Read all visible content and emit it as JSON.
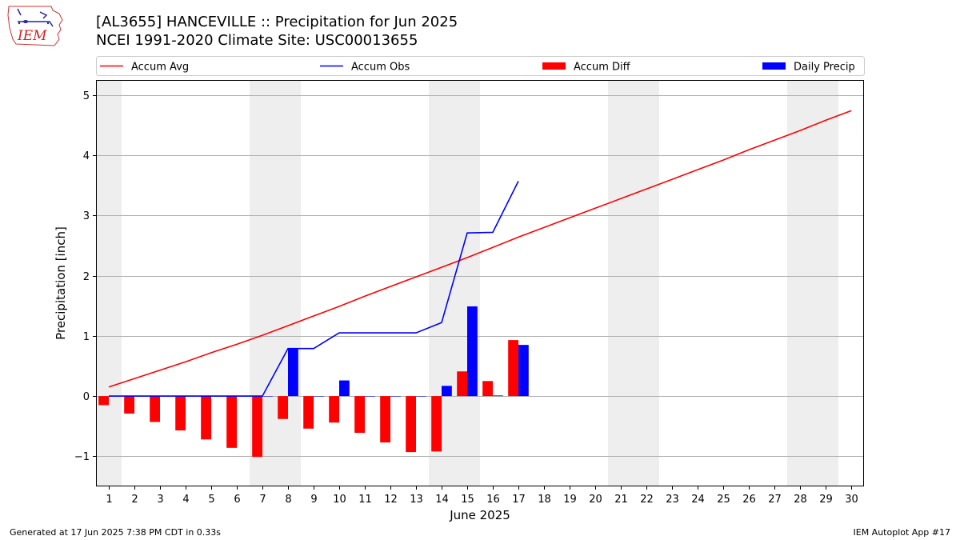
{
  "header": {
    "title_line1": "[AL3655] HANCEVILLE :: Precipitation for Jun 2025",
    "title_line2": "NCEI 1991-2020 Climate Site: USC00013655",
    "logo_text": "IEM"
  },
  "footer": {
    "left": "Generated at 17 Jun 2025 7:38 PM CDT in 0.33s",
    "right": "IEM Autoplot App #17"
  },
  "chart_data": {
    "type": "bar",
    "xlabel": "June 2025",
    "ylabel": "Precipitation [inch]",
    "xlim": [
      0.5,
      30.5
    ],
    "ylim": [
      -1.5,
      5.25
    ],
    "yticks": [
      -1,
      0,
      1,
      2,
      3,
      4,
      5
    ],
    "ytick_labels": [
      "−1",
      "0",
      "1",
      "2",
      "3",
      "4",
      "5"
    ],
    "xticks": [
      1,
      2,
      3,
      4,
      5,
      6,
      7,
      8,
      9,
      10,
      11,
      12,
      13,
      14,
      15,
      16,
      17,
      18,
      19,
      20,
      21,
      22,
      23,
      24,
      25,
      26,
      27,
      28,
      29,
      30
    ],
    "grid": "horizontal",
    "weekend_shading": [
      [
        0.5,
        1.5
      ],
      [
        6.5,
        8.5
      ],
      [
        13.5,
        15.5
      ],
      [
        20.5,
        22.5
      ],
      [
        27.5,
        29.5
      ]
    ],
    "legend_position": "top",
    "colors": {
      "accum_avg": "#ff0000",
      "accum_obs": "#0000ff",
      "accum_diff": "#ff0000",
      "daily_precip": "#0000ff",
      "shading": "#eeeeee",
      "grid": "#b0b0b0"
    },
    "legend": [
      {
        "label": "Accum Avg",
        "kind": "line",
        "color": "#ff0000"
      },
      {
        "label": "Accum Obs",
        "kind": "line",
        "color": "#0000ff"
      },
      {
        "label": "Accum Diff",
        "kind": "bar",
        "color": "#ff0000"
      },
      {
        "label": "Daily Precip",
        "kind": "bar",
        "color": "#0000ff"
      }
    ],
    "series": [
      {
        "name": "Accum Avg",
        "kind": "line",
        "x": [
          1,
          2,
          3,
          4,
          5,
          6,
          7,
          8,
          9,
          10,
          11,
          12,
          13,
          14,
          15,
          16,
          17,
          18,
          19,
          20,
          21,
          22,
          23,
          24,
          25,
          26,
          27,
          28,
          29,
          30
        ],
        "values": [
          0.15,
          0.29,
          0.43,
          0.57,
          0.72,
          0.86,
          1.01,
          1.17,
          1.33,
          1.49,
          1.66,
          1.82,
          1.98,
          2.14,
          2.3,
          2.47,
          2.64,
          2.8,
          2.96,
          3.12,
          3.28,
          3.44,
          3.6,
          3.76,
          3.92,
          4.09,
          4.25,
          4.41,
          4.58,
          4.74
        ]
      },
      {
        "name": "Accum Obs",
        "kind": "line",
        "x": [
          1,
          2,
          3,
          4,
          5,
          6,
          7,
          8,
          9,
          10,
          11,
          12,
          13,
          14,
          15,
          16,
          17
        ],
        "values": [
          0.0,
          0.0,
          0.0,
          0.0,
          0.0,
          0.0,
          0.0,
          0.79,
          0.79,
          1.05,
          1.05,
          1.05,
          1.05,
          1.22,
          2.71,
          2.72,
          3.57
        ]
      },
      {
        "name": "Accum Diff",
        "kind": "bar",
        "x": [
          1,
          2,
          3,
          4,
          5,
          6,
          7,
          8,
          9,
          10,
          11,
          12,
          13,
          14,
          15,
          16,
          17
        ],
        "values": [
          -0.15,
          -0.29,
          -0.43,
          -0.57,
          -0.72,
          -0.86,
          -1.01,
          -0.38,
          -0.54,
          -0.44,
          -0.61,
          -0.77,
          -0.93,
          -0.92,
          0.41,
          0.25,
          0.93
        ]
      },
      {
        "name": "Daily Precip",
        "kind": "bar",
        "x": [
          1,
          2,
          3,
          4,
          5,
          6,
          7,
          8,
          9,
          10,
          11,
          12,
          13,
          14,
          15,
          16,
          17
        ],
        "values": [
          0.0,
          0.0,
          0.0,
          0.0,
          0.0,
          0.0,
          0.0,
          0.79,
          0.0,
          0.26,
          0.0,
          0.0,
          0.0,
          0.17,
          1.49,
          0.01,
          0.85
        ]
      }
    ]
  }
}
